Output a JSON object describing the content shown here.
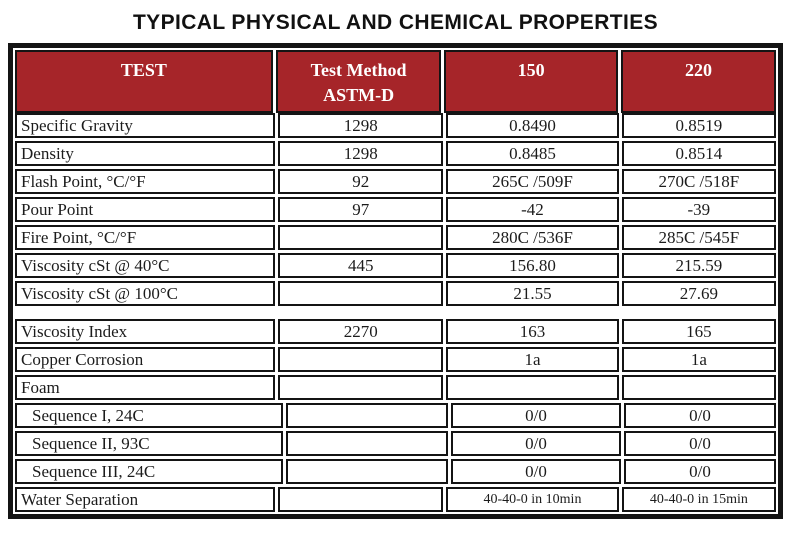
{
  "title": "TYPICAL PHYSICAL AND CHEMICAL PROPERTIES",
  "colors": {
    "header_bg": "#A62529",
    "header_text": "#FFFFFF",
    "grid": "#141414",
    "text": "#1C1C1C",
    "page_bg": "#FFFFFF"
  },
  "table": {
    "header": {
      "test": "TEST",
      "method_line1": "Test Method",
      "method_line2": "ASTM-D",
      "col150": "150",
      "col220": "220"
    },
    "rows": [
      {
        "test": "Specific Gravity",
        "method": "1298",
        "v150": "0.8490",
        "v220": "0.8519"
      },
      {
        "test": "Density",
        "method": "1298",
        "v150": "0.8485",
        "v220": "0.8514"
      },
      {
        "test": "Flash Point, °C/°F",
        "method": "92",
        "v150": "265C /509F",
        "v220": "270C /518F"
      },
      {
        "test": "Pour Point",
        "method": "97",
        "v150": "-42",
        "v220": "-39"
      },
      {
        "test": "Fire Point, °C/°F",
        "method": "",
        "v150": "280C /536F",
        "v220": "285C /545F"
      },
      {
        "test": "Viscosity cSt @ 40°C",
        "method": "445",
        "v150": "156.80",
        "v220": "215.59"
      },
      {
        "test": "Viscosity cSt @ 100°C",
        "method": "",
        "v150": "21.55",
        "v220": "27.69"
      },
      {
        "test": "Viscosity Index",
        "method": "2270",
        "v150": "163",
        "v220": "165",
        "gap_before": true
      },
      {
        "test": "Copper Corrosion",
        "method": "",
        "v150": "1a",
        "v220": "1a"
      },
      {
        "test": "Foam",
        "method": "",
        "v150": "",
        "v220": ""
      },
      {
        "test": "Sequence I, 24C",
        "method": "",
        "v150": "0/0",
        "v220": "0/0",
        "indent": true
      },
      {
        "test": "Sequence II, 93C",
        "method": "",
        "v150": "0/0",
        "v220": "0/0",
        "indent": true
      },
      {
        "test": "Sequence III, 24C",
        "method": "",
        "v150": "0/0",
        "v220": "0/0",
        "indent": true
      },
      {
        "test": "Water Separation",
        "method": "",
        "v150": "40-40-0 in 10min",
        "v220": "40-40-0 in 15min",
        "small_values": true
      }
    ]
  }
}
